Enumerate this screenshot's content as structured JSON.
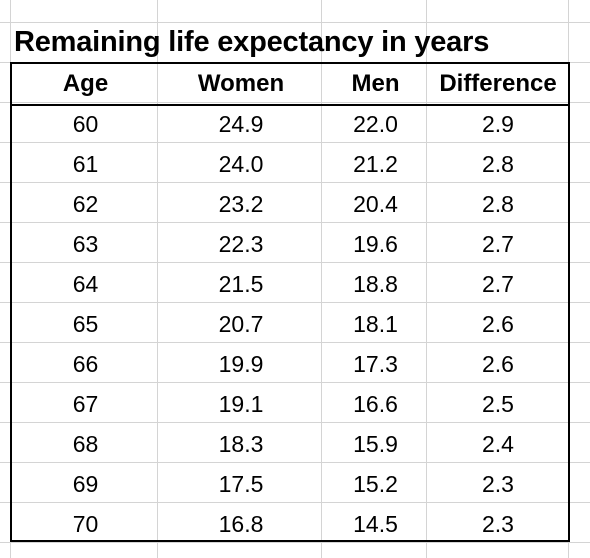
{
  "sheet": {
    "title": "Remaining life expectancy in years",
    "columns": [
      "Age",
      "Women",
      "Men",
      "Difference"
    ],
    "rows": [
      [
        "60",
        "24.9",
        "22.0",
        "2.9"
      ],
      [
        "61",
        "24.0",
        "21.2",
        "2.8"
      ],
      [
        "62",
        "23.2",
        "20.4",
        "2.8"
      ],
      [
        "63",
        "22.3",
        "19.6",
        "2.7"
      ],
      [
        "64",
        "21.5",
        "18.8",
        "2.7"
      ],
      [
        "65",
        "20.7",
        "18.1",
        "2.6"
      ],
      [
        "66",
        "19.9",
        "17.3",
        "2.6"
      ],
      [
        "67",
        "19.1",
        "16.6",
        "2.5"
      ],
      [
        "68",
        "18.3",
        "15.9",
        "2.4"
      ],
      [
        "69",
        "17.5",
        "15.2",
        "2.3"
      ],
      [
        "70",
        "16.8",
        "14.5",
        "2.3"
      ]
    ]
  },
  "colors": {
    "gridline": "#d4d4d4",
    "border": "#000000",
    "text": "#000000",
    "background": "#ffffff"
  }
}
